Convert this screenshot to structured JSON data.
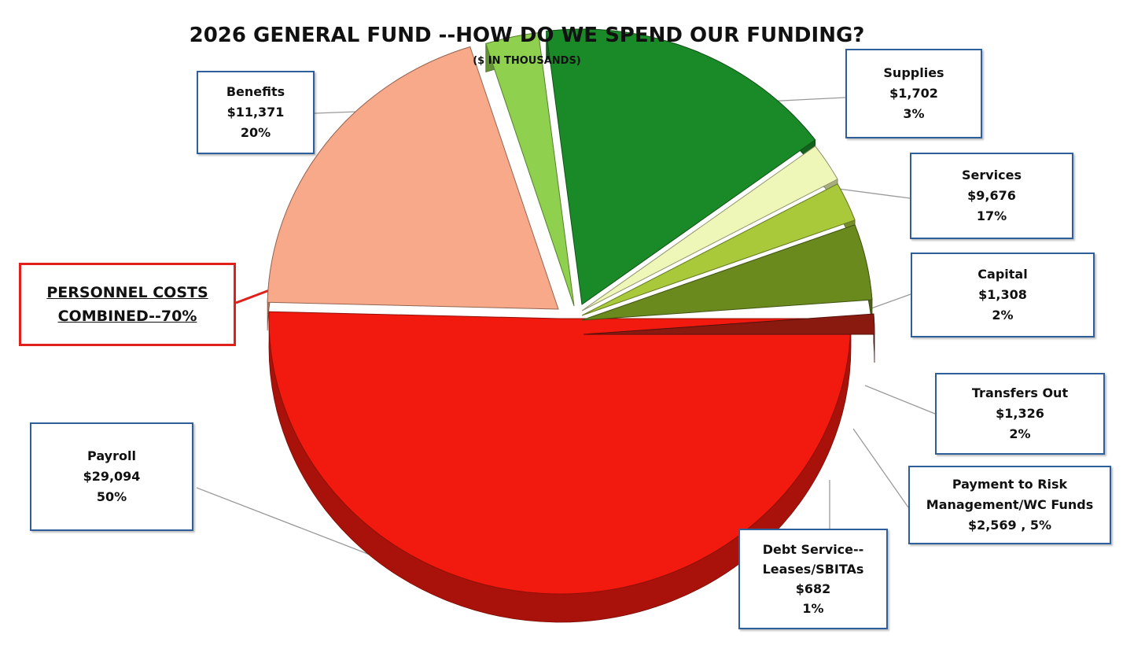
{
  "chart_data": {
    "type": "pie",
    "title": "2026 GENERAL FUND --HOW DO WE SPEND OUR FUNDING?",
    "subtitle": "($ IN THOUSANDS)",
    "slices": [
      {
        "name": "Payroll",
        "value_label": "$29,094",
        "percent_label": "50%",
        "value": 29094,
        "color": "#f21a0e"
      },
      {
        "name": "Benefits",
        "value_label": "$11,371",
        "percent_label": "20%",
        "value": 11371,
        "color": "#f7a98a"
      },
      {
        "name": "Supplies",
        "value_label": "$1,702",
        "percent_label": "3%",
        "value": 1702,
        "color": "#8fd14f"
      },
      {
        "name": "Services",
        "value_label": "$9,676",
        "percent_label": "17%",
        "value": 9676,
        "color": "#1a8a28"
      },
      {
        "name": "Capital",
        "value_label": "$1,308",
        "percent_label": "2%",
        "value": 1308,
        "color": "#eef7b8"
      },
      {
        "name": "Transfers Out",
        "value_label": "$1,326",
        "percent_label": "2%",
        "value": 1326,
        "color": "#a9c93a"
      },
      {
        "name": "Payment to Risk Management/WC Funds",
        "value_label": "$2,569 , 5%",
        "percent_label": "",
        "value": 2569,
        "color": "#6b8a1e"
      },
      {
        "name": "Debt Service--Leases/SBITAs",
        "value_label": "$682",
        "percent_label": "1%",
        "value": 682,
        "color": "#8a1a10"
      }
    ]
  },
  "labels": {
    "benefits": [
      "Benefits",
      "$11,371",
      "20%"
    ],
    "supplies": [
      "Supplies",
      "$1,702",
      "3%"
    ],
    "services": [
      "Services",
      "$9,676",
      "17%"
    ],
    "capital": [
      "Capital",
      "$1,308",
      "2%"
    ],
    "transfers": [
      "Transfers Out",
      "$1,326",
      "2%"
    ],
    "risk": [
      "Payment to Risk",
      "Management/WC Funds",
      "$2,569 , 5%"
    ],
    "debt": [
      "Debt Service--",
      "Leases/SBITAs",
      "$682",
      "1%"
    ],
    "payroll": [
      "Payroll",
      "$29,094",
      "50%"
    ]
  },
  "personnel_note": [
    "PERSONNEL COSTS",
    "COMBINED--70%"
  ]
}
